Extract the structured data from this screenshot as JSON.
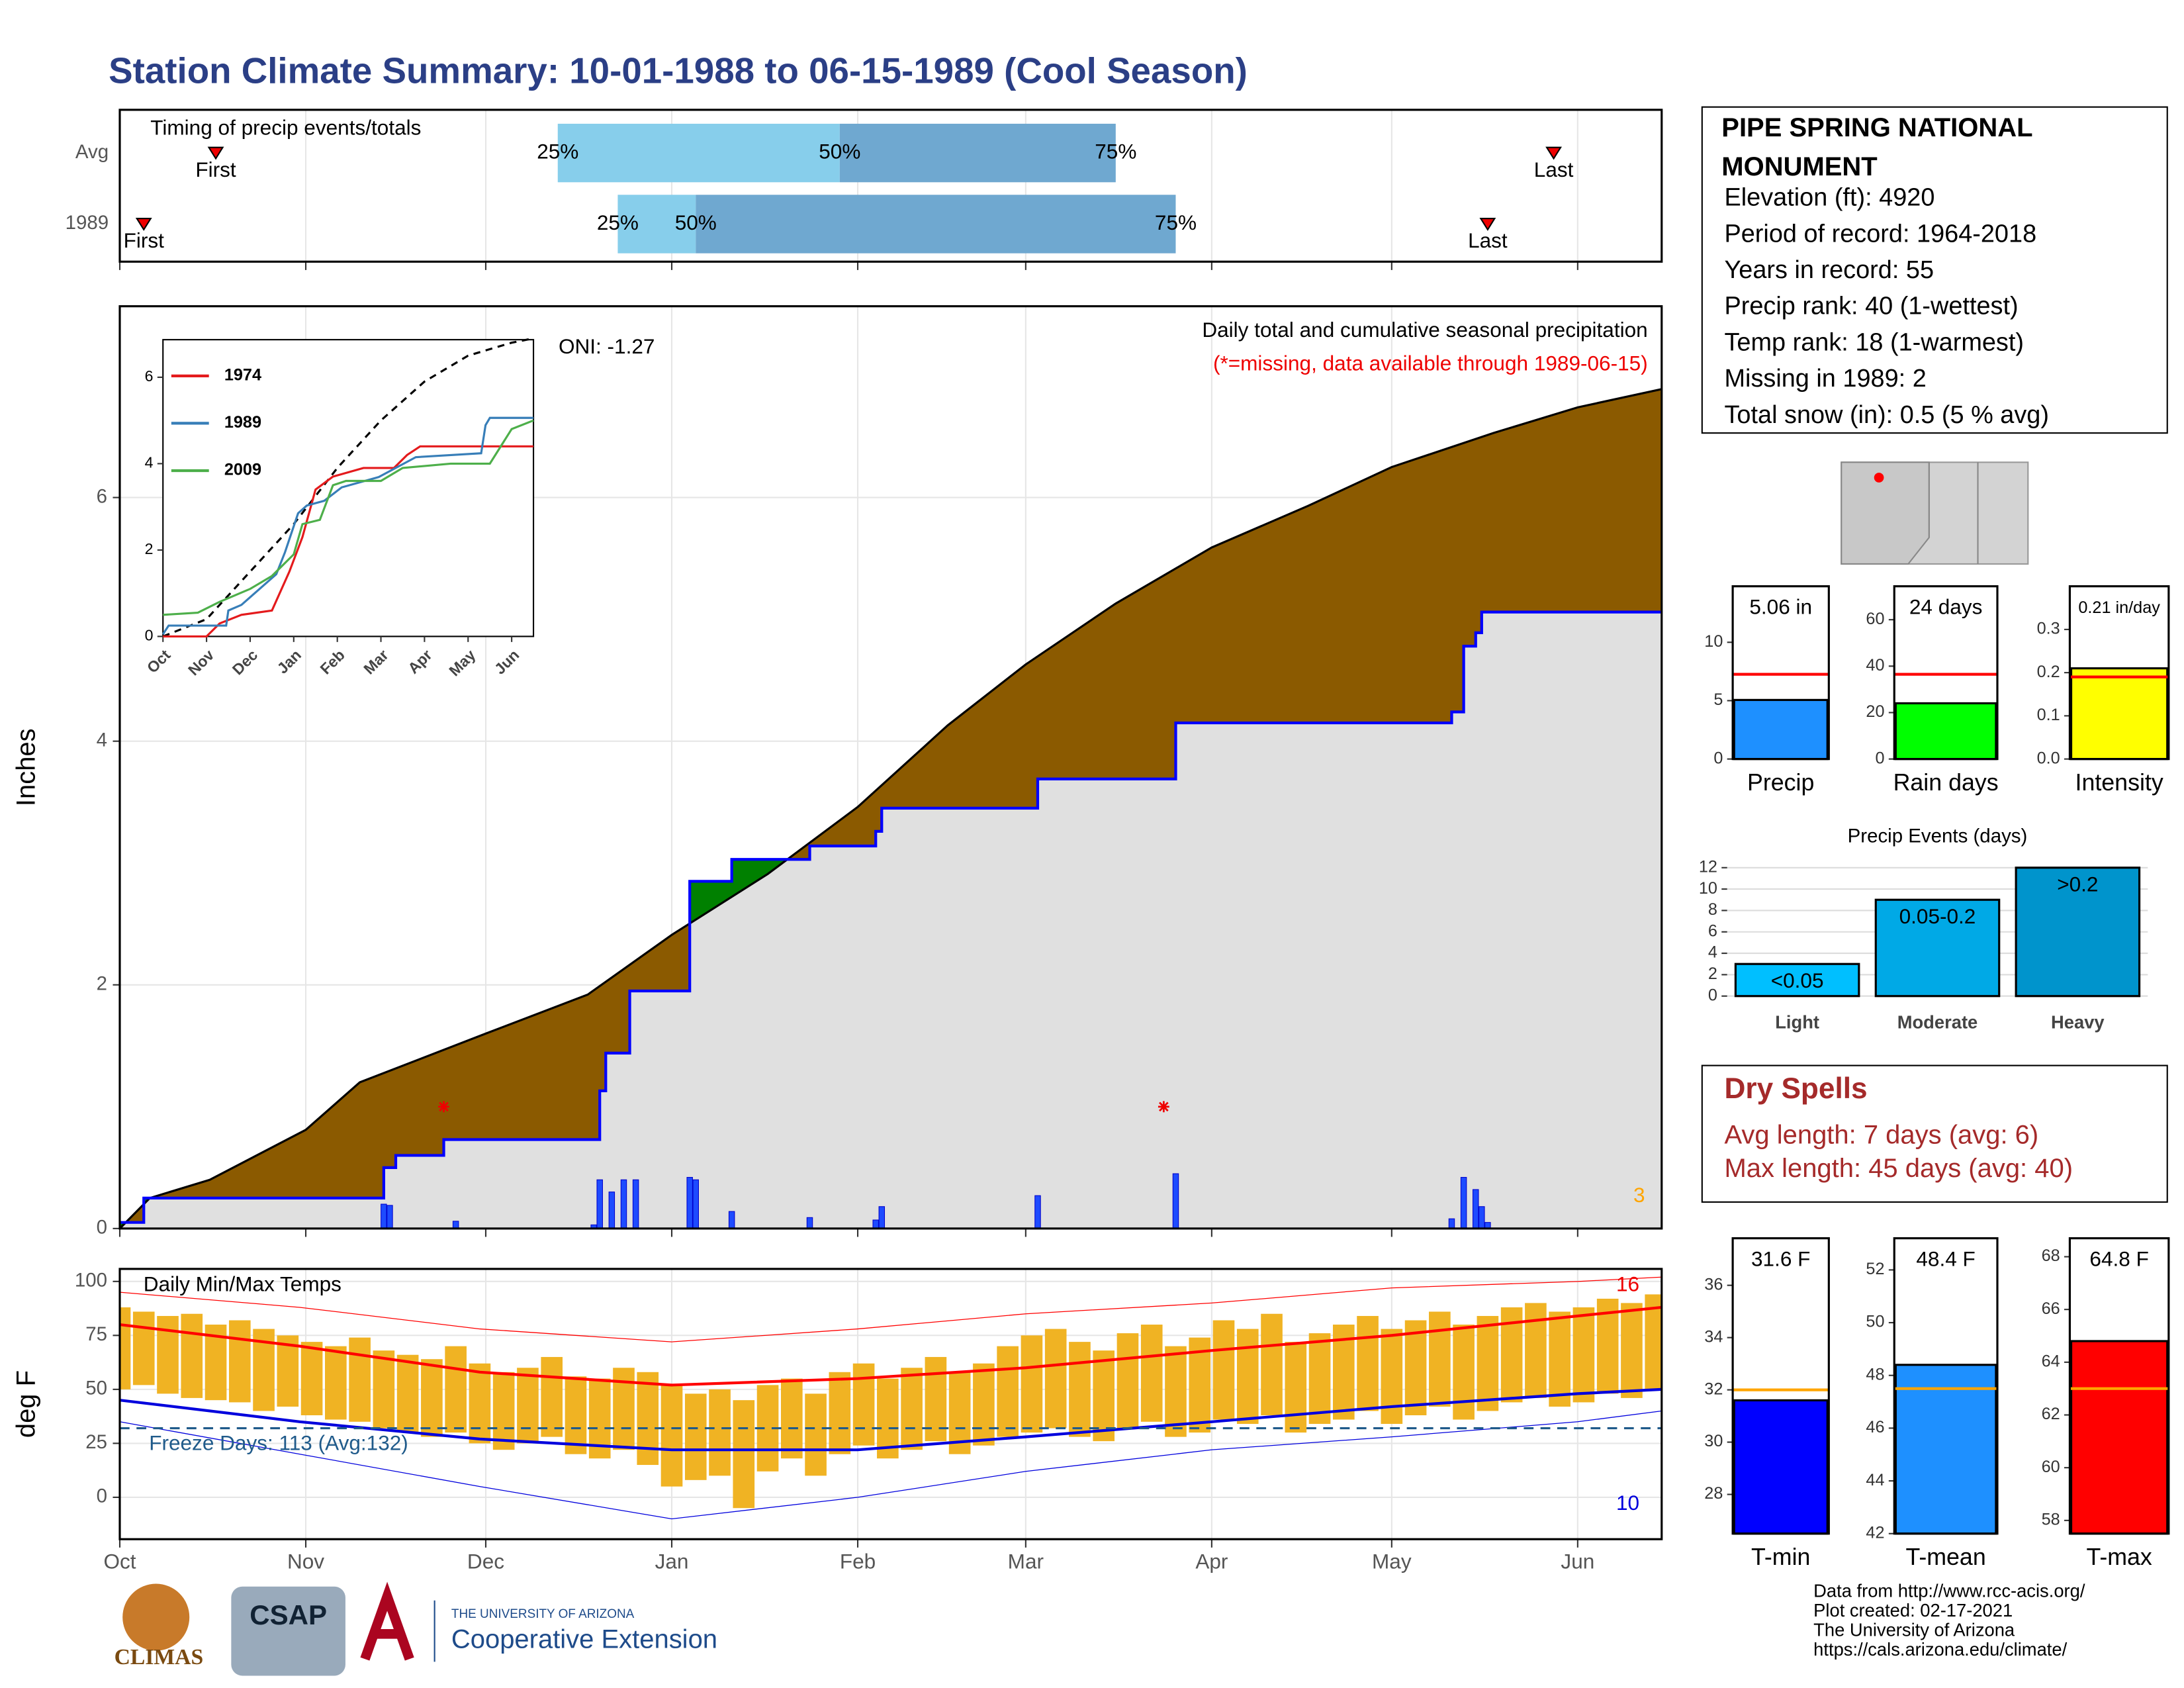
{
  "title": "Station Climate Summary: 10-01-1988 to 06-15-1989 (Cool Season)",
  "chart_data": [
    {
      "type": "timing",
      "title": "Timing of precip events/totals",
      "xlim": [
        0,
        257
      ],
      "quartile_labels": [
        "25%",
        "50%",
        "75%"
      ],
      "event_labels": [
        "First",
        "Last"
      ],
      "series": [
        {
          "name": "Avg",
          "quartiles": [
            73,
            120,
            166
          ],
          "first": 16,
          "last": 239
        },
        {
          "name": "1989",
          "quartiles": [
            83,
            96,
            176
          ],
          "first": 4,
          "last": 228
        }
      ],
      "colors": [
        "#87ceeb",
        "#6fa8d0"
      ]
    },
    {
      "type": "cumulative",
      "ylabel": "Inches",
      "subtitle": "Daily total and cumulative seasonal precipitation",
      "note": "(*=missing, data available through 1989-06-15)",
      "oni": "ONI: -1.27",
      "corner_note": "3",
      "xlim": [
        0,
        257
      ],
      "ylim": [
        0,
        7.57
      ],
      "yticks": [
        0,
        2,
        4,
        6
      ],
      "xticks": [
        {
          "value": 0,
          "label": "Oct"
        },
        {
          "value": 31,
          "label": "Nov"
        },
        {
          "value": 61,
          "label": "Dec"
        },
        {
          "value": 92,
          "label": "Jan"
        },
        {
          "value": 123,
          "label": "Feb"
        },
        {
          "value": 151,
          "label": "Mar"
        },
        {
          "value": 182,
          "label": "Apr"
        },
        {
          "value": 212,
          "label": "May"
        },
        {
          "value": 243,
          "label": "Jun"
        }
      ],
      "average": {
        "x": [
          0,
          5,
          15,
          31,
          40,
          61,
          78,
          92,
          108,
          123,
          138,
          151,
          166,
          182,
          198,
          212,
          229,
          243,
          257
        ],
        "values": [
          0,
          0.25,
          0.4,
          0.81,
          1.2,
          1.6,
          1.92,
          2.41,
          2.91,
          3.46,
          4.13,
          4.63,
          5.13,
          5.59,
          5.93,
          6.25,
          6.53,
          6.74,
          6.89
        ]
      },
      "season": {
        "x": [
          0,
          4,
          4,
          44,
          44,
          46,
          46,
          54,
          54,
          80,
          80,
          81,
          81,
          85,
          85,
          95,
          95,
          102,
          102,
          115,
          115,
          126,
          126,
          127,
          127,
          153,
          153,
          176,
          176,
          222,
          222,
          224,
          224,
          226,
          226,
          227,
          227,
          257
        ],
        "values": [
          0.05,
          0.05,
          0.25,
          0.25,
          0.5,
          0.5,
          0.6,
          0.6,
          0.73,
          0.73,
          1.13,
          1.13,
          1.44,
          1.44,
          1.95,
          1.95,
          2.85,
          2.85,
          3.03,
          3.03,
          3.14,
          3.14,
          3.26,
          3.26,
          3.45,
          3.45,
          3.69,
          3.69,
          4.15,
          4.15,
          4.24,
          4.24,
          4.78,
          4.78,
          4.89,
          4.89,
          5.06,
          5.06
        ]
      },
      "daily": {
        "x": [
          44,
          45,
          56,
          79,
          80,
          82,
          84,
          86,
          95,
          96,
          102,
          115,
          126,
          127,
          153,
          176,
          222,
          224,
          226,
          227,
          228
        ],
        "values": [
          0.2,
          0.19,
          0.06,
          0.03,
          0.4,
          0.3,
          0.4,
          0.4,
          0.42,
          0.4,
          0.14,
          0.09,
          0.07,
          0.18,
          0.27,
          0.45,
          0.08,
          0.42,
          0.32,
          0.18,
          0.05
        ]
      },
      "missing_x": [
        54,
        174
      ],
      "missing_level": 1.0,
      "colors": {
        "below": "#8b5a00",
        "above": "#008000",
        "area": "#e0e0e0",
        "line": "#0000ff",
        "bars": "#1e4bff"
      }
    },
    {
      "type": "inset",
      "xlim": [
        0,
        8.5
      ],
      "ylim": [
        0,
        6.87
      ],
      "yticks": [
        0,
        2,
        4,
        6
      ],
      "xticks": [
        {
          "value": 0,
          "label": "Oct"
        },
        {
          "value": 1,
          "label": "Nov"
        },
        {
          "value": 2,
          "label": "Dec"
        },
        {
          "value": 3,
          "label": "Jan"
        },
        {
          "value": 4,
          "label": "Feb"
        },
        {
          "value": 5,
          "label": "Mar"
        },
        {
          "value": 6,
          "label": "Apr"
        },
        {
          "value": 7,
          "label": "May"
        },
        {
          "value": 8,
          "label": "Jun"
        }
      ],
      "series": [
        {
          "name": "1974",
          "color": "#e41a1c",
          "x": [
            0,
            1,
            1.3,
            1.8,
            2.5,
            2.9,
            3.2,
            3.5,
            3.9,
            4.6,
            5.3,
            5.6,
            5.9,
            8.5
          ],
          "values": [
            0,
            0,
            0.3,
            0.5,
            0.6,
            1.5,
            2.3,
            3.4,
            3.7,
            3.9,
            3.9,
            4.2,
            4.4,
            4.4
          ]
        },
        {
          "name": "1989",
          "color": "#377eb8",
          "x": [
            0,
            0.13,
            1.45,
            1.5,
            1.8,
            2.6,
            2.8,
            3.1,
            3.3,
            3.7,
            4.1,
            4.95,
            5.8,
            7.3,
            7.4,
            7.5,
            8.5
          ],
          "values": [
            0.05,
            0.25,
            0.25,
            0.6,
            0.73,
            1.44,
            1.95,
            2.85,
            3.03,
            3.14,
            3.45,
            3.69,
            4.15,
            4.24,
            4.89,
            5.06,
            5.06
          ]
        },
        {
          "name": "2009",
          "color": "#4daf4a",
          "x": [
            0,
            0.8,
            1.3,
            2,
            2.5,
            3,
            3.2,
            3.6,
            3.9,
            4.2,
            5,
            5.5,
            6.6,
            7.5,
            8,
            8.5
          ],
          "values": [
            0.5,
            0.55,
            0.8,
            1.1,
            1.4,
            1.9,
            2.6,
            2.7,
            3.5,
            3.6,
            3.6,
            3.9,
            4.0,
            4.0,
            4.8,
            5.0
          ]
        }
      ],
      "average": {
        "x": [
          0,
          1,
          2,
          3,
          4,
          5,
          6,
          7,
          8,
          8.5
        ],
        "values": [
          0,
          0.4,
          1.5,
          2.6,
          3.9,
          5.0,
          5.9,
          6.5,
          6.8,
          6.9
        ]
      }
    },
    {
      "type": "summary_bar",
      "categories": [
        "Precip"
      ],
      "values": [
        5.06
      ],
      "value_labels": [
        "5.06 in"
      ],
      "average": 7.26,
      "color": "#1e90ff",
      "average_color": "#ff0000",
      "ylim": [
        0,
        14.8
      ],
      "yticks": [
        0,
        5,
        10
      ]
    },
    {
      "type": "summary_bar",
      "categories": [
        "Rain days"
      ],
      "values": [
        24
      ],
      "value_labels": [
        "24 days"
      ],
      "average": 36.5,
      "color": "#00ff00",
      "average_color": "#ff0000",
      "ylim": [
        0,
        74.4
      ],
      "yticks": [
        0,
        20,
        40,
        60
      ]
    },
    {
      "type": "summary_bar",
      "categories": [
        "Intensity"
      ],
      "values": [
        0.21
      ],
      "value_labels": [
        "0.21 in/day"
      ],
      "average": 0.19,
      "color": "#ffff00",
      "average_color": "#ff0000",
      "ylim": [
        0,
        0.4
      ],
      "yticks": [
        {
          "value": 0,
          "label": "0.0"
        },
        0.1,
        0.2,
        0.3
      ]
    },
    {
      "type": "events_bar",
      "title": "Precip Events (days)",
      "categories": [
        "Light",
        "Moderate",
        "Heavy"
      ],
      "values": [
        3,
        9,
        12
      ],
      "bar_labels": [
        "<0.05",
        "0.05-0.2",
        ">0.2"
      ],
      "colors": [
        "#00bfff",
        "#00a9e6",
        "#0094cc"
      ],
      "ylim": [
        -0.5,
        12.65
      ],
      "yticks": [
        0,
        2,
        4,
        6,
        8,
        10,
        12
      ]
    },
    {
      "type": "temperature",
      "title": "Daily Min/Max Temps",
      "ylabel": "deg F",
      "annotation": "Freeze Days: 113 (Avg:132)",
      "high_note": "16",
      "low_note": "10",
      "freeze_line": 32,
      "xlim": [
        0,
        257
      ],
      "ylim": [
        -19.4,
        105.8
      ],
      "yticks": [
        0,
        25,
        50,
        75,
        100
      ],
      "xticks": [
        {
          "value": 0,
          "label": "Oct"
        },
        {
          "value": 31,
          "label": "Nov"
        },
        {
          "value": 61,
          "label": "Dec"
        },
        {
          "value": 92,
          "label": "Jan"
        },
        {
          "value": 123,
          "label": "Feb"
        },
        {
          "value": 151,
          "label": "Mar"
        },
        {
          "value": 182,
          "label": "Apr"
        },
        {
          "value": 212,
          "label": "May"
        },
        {
          "value": 243,
          "label": "Jun"
        }
      ],
      "x": [
        0,
        4,
        8,
        12,
        16,
        20,
        24,
        28,
        32,
        36,
        40,
        44,
        48,
        52,
        56,
        60,
        64,
        68,
        72,
        76,
        80,
        84,
        88,
        92,
        96,
        100,
        104,
        108,
        112,
        116,
        120,
        124,
        128,
        132,
        136,
        140,
        144,
        148,
        152,
        156,
        160,
        164,
        168,
        172,
        176,
        180,
        184,
        188,
        192,
        196,
        200,
        204,
        208,
        212,
        216,
        220,
        224,
        228,
        232,
        236,
        240,
        244,
        248,
        252,
        256
      ],
      "high": [
        88,
        86,
        84,
        85,
        80,
        82,
        78,
        75,
        72,
        70,
        74,
        68,
        66,
        64,
        70,
        62,
        58,
        60,
        65,
        56,
        55,
        60,
        58,
        52,
        48,
        50,
        45,
        52,
        55,
        48,
        58,
        62,
        55,
        60,
        65,
        58,
        62,
        70,
        75,
        78,
        72,
        68,
        76,
        80,
        70,
        74,
        82,
        78,
        85,
        72,
        76,
        80,
        84,
        78,
        82,
        86,
        80,
        84,
        88,
        90,
        86,
        88,
        92,
        90,
        94
      ],
      "low": [
        50,
        52,
        48,
        46,
        45,
        44,
        40,
        42,
        38,
        36,
        35,
        32,
        30,
        28,
        30,
        25,
        22,
        25,
        28,
        20,
        18,
        22,
        15,
        5,
        8,
        10,
        -5,
        12,
        18,
        10,
        20,
        24,
        18,
        22,
        26,
        20,
        24,
        28,
        30,
        32,
        28,
        26,
        32,
        35,
        28,
        30,
        36,
        34,
        38,
        30,
        34,
        36,
        40,
        34,
        38,
        42,
        36,
        40,
        44,
        46,
        42,
        44,
        48,
        46,
        50
      ],
      "normal_x": [
        0,
        30,
        60,
        92,
        123,
        151,
        182,
        212,
        243,
        257
      ],
      "normal_high": [
        80,
        70,
        58,
        52,
        55,
        60,
        68,
        75,
        84,
        88
      ],
      "normal_low": [
        45,
        35,
        27,
        22,
        22,
        28,
        35,
        42,
        48,
        50
      ],
      "record_high": [
        95,
        88,
        78,
        72,
        78,
        85,
        90,
        97,
        100,
        102
      ],
      "record_low": [
        35,
        20,
        5,
        -10,
        0,
        12,
        22,
        28,
        35,
        40
      ],
      "colors": {
        "bars": "#f0b323",
        "high": "#ff0000",
        "low": "#0000dd",
        "freeze": "#1f5a8a"
      }
    },
    {
      "type": "summary_bar",
      "categories": [
        "T-min"
      ],
      "values": [
        31.6
      ],
      "value_labels": [
        "31.6 F"
      ],
      "average": 32.0,
      "color": "#0000ff",
      "average_color": "#ffa500",
      "ylim": [
        26.5,
        37.8
      ],
      "yticks": [
        28,
        30,
        32,
        34,
        36
      ]
    },
    {
      "type": "summary_bar",
      "categories": [
        "T-mean"
      ],
      "values": [
        48.4
      ],
      "value_labels": [
        "48.4 F"
      ],
      "average": 47.5,
      "color": "#1e90ff",
      "average_color": "#ffa500",
      "ylim": [
        42,
        53.2
      ],
      "yticks": [
        42,
        44,
        46,
        48,
        50,
        52
      ]
    },
    {
      "type": "summary_bar",
      "categories": [
        "T-max"
      ],
      "values": [
        64.8
      ],
      "value_labels": [
        "64.8 F"
      ],
      "average": 63.0,
      "color": "#ff0000",
      "average_color": "#ffa500",
      "ylim": [
        57.5,
        68.7
      ],
      "yticks": [
        58,
        60,
        62,
        64,
        66,
        68
      ]
    }
  ],
  "station": {
    "name": "PIPE SPRING NATIONAL MONUMENT",
    "lines": [
      "Elevation (ft): 4920",
      "Period of record: 1964-2018",
      "Years in record: 55",
      "Precip rank: 40 (1-wettest)",
      "Temp rank: 18 (1-warmest)",
      "Missing in 1989: 2",
      "Total snow (in): 0.5 (5 % avg)"
    ]
  },
  "dry_spells": {
    "title": "Dry Spells",
    "lines": [
      "Avg length: 7 days (avg: 6)",
      "Max length: 45 days (avg: 40)"
    ]
  },
  "footer": [
    "Data from http://www.rcc-acis.org/",
    "Plot created: 02-17-2021",
    "The University of Arizona",
    "https://cals.arizona.edu/climate/"
  ],
  "logos": [
    "CLIMAS",
    "CSAP",
    "THE UNIVERSITY OF ARIZONA",
    "Cooperative Extension"
  ]
}
